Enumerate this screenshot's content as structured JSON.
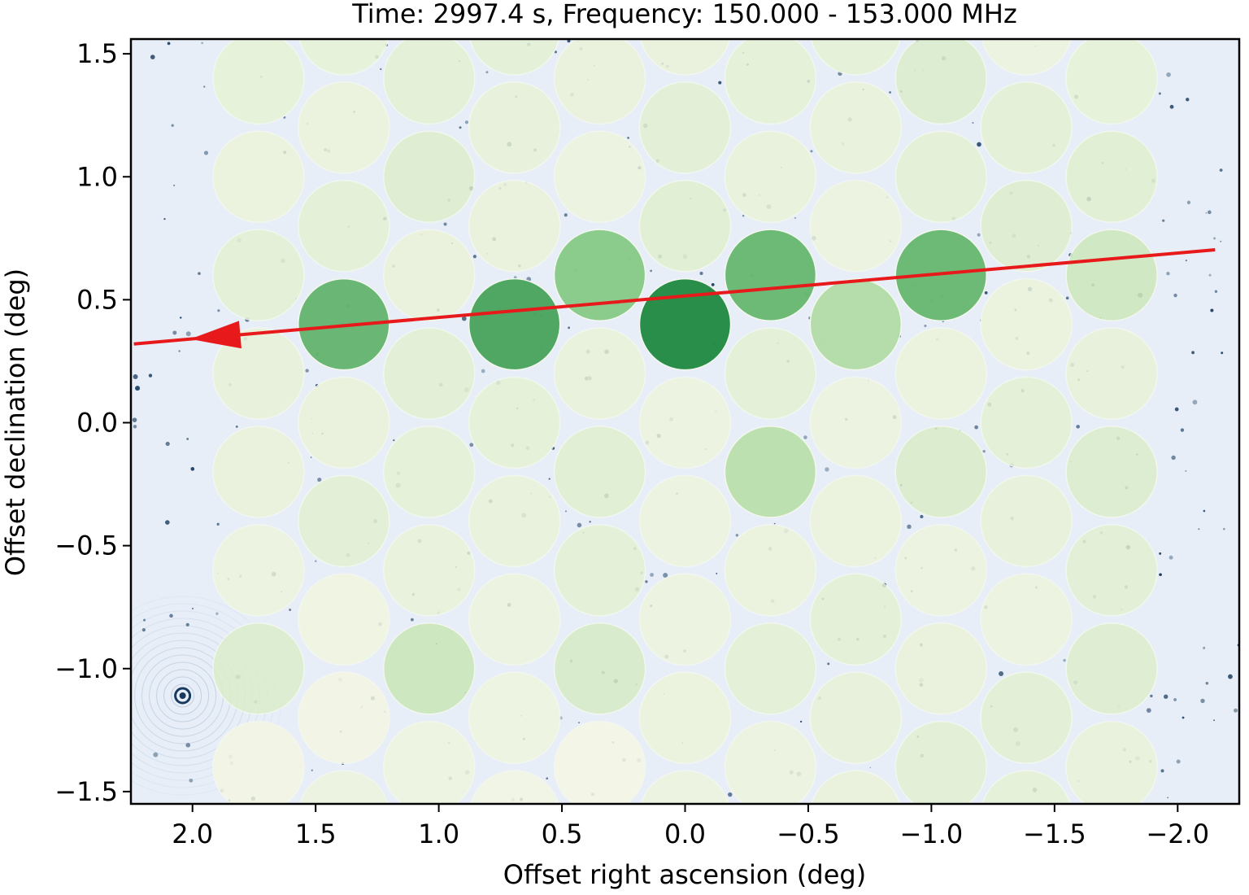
{
  "chart_data": {
    "type": "scatter",
    "title": "Time: 2997.4 s, Frequency: 150.000 - 153.000 MHz",
    "xlabel": "Offset right ascension (deg)",
    "ylabel": "Offset declination (deg)",
    "xlim": [
      2.25,
      -2.25
    ],
    "ylim": [
      -1.55,
      1.56
    ],
    "xticks": [
      2.0,
      1.5,
      1.0,
      0.5,
      0.0,
      -0.5,
      -1.0,
      -1.5,
      -2.0
    ],
    "xtick_labels": [
      "2.0",
      "1.5",
      "1.0",
      "0.5",
      "0.0",
      "−0.5",
      "−1.0",
      "−1.5",
      "−2.0"
    ],
    "yticks": [
      1.5,
      1.0,
      0.5,
      0.0,
      -0.5,
      -1.0,
      -1.5
    ],
    "ytick_labels": [
      "1.5",
      "1.0",
      "0.5",
      "0.0",
      "−0.5",
      "−1.0",
      "−1.5"
    ],
    "beam_grid": {
      "ra_spacing": 0.3464,
      "dec_spacing": 0.4,
      "odd_column_dec_offset": 0.2,
      "columns": [
        -5,
        5
      ],
      "beam_radius_deg": 0.185,
      "default_intensity": 0.08
    },
    "beam_intensity": [
      {
        "ra": 0.0,
        "dec": 0.4,
        "v": 1.0
      },
      {
        "ra": 0.693,
        "dec": 0.4,
        "v": 0.82
      },
      {
        "ra": 1.386,
        "dec": 0.4,
        "v": 0.7
      },
      {
        "ra": 0.346,
        "dec": 0.6,
        "v": 0.55
      },
      {
        "ra": -0.346,
        "dec": 0.6,
        "v": 0.68
      },
      {
        "ra": -1.039,
        "dec": 0.6,
        "v": 0.68
      },
      {
        "ra": -0.693,
        "dec": 0.4,
        "v": 0.38
      },
      {
        "ra": -1.732,
        "dec": 0.6,
        "v": 0.28
      },
      {
        "ra": -0.346,
        "dec": -0.2,
        "v": 0.35
      },
      {
        "ra": 1.039,
        "dec": -1.0,
        "v": 0.3
      },
      {
        "ra": 0.346,
        "dec": -1.0,
        "v": 0.2
      },
      {
        "ra": -1.039,
        "dec": -0.2,
        "v": 0.18
      },
      {
        "ra": -1.732,
        "dec": -0.2,
        "v": 0.16
      },
      {
        "ra": 0.346,
        "dec": -0.2,
        "v": 0.12
      },
      {
        "ra": 0.0,
        "dec": 0.8,
        "v": 0.12
      },
      {
        "ra": 1.039,
        "dec": 1.0,
        "v": 0.14
      },
      {
        "ra": -1.039,
        "dec": 1.4,
        "v": 0.16
      },
      {
        "ra": -1.386,
        "dec": 0.8,
        "v": 0.14
      },
      {
        "ra": -1.732,
        "dec": 1.0,
        "v": 0.12
      },
      {
        "ra": -1.732,
        "dec": -1.0,
        "v": 0.14
      },
      {
        "ra": 1.732,
        "dec": -1.0,
        "v": 0.16
      },
      {
        "ra": -0.346,
        "dec": -1.4,
        "v": 0.02
      },
      {
        "ra": 0.0,
        "dec": 0.0,
        "v": 0.02
      },
      {
        "ra": 0.0,
        "dec": -0.4,
        "v": 0.02
      },
      {
        "ra": 0.0,
        "dec": -0.8,
        "v": 0.03
      },
      {
        "ra": 0.346,
        "dec": 1.0,
        "v": 0.03
      },
      {
        "ra": -0.693,
        "dec": 0.8,
        "v": 0.03
      },
      {
        "ra": -0.693,
        "dec": -0.0,
        "v": 0.03
      },
      {
        "ra": 1.732,
        "dec": -0.6,
        "v": 0.02
      },
      {
        "ra": 1.386,
        "dec": -1.4,
        "v": 0.03
      },
      {
        "ra": -1.386,
        "dec": -0.8,
        "v": 0.03
      },
      {
        "ra": -1.039,
        "dec": -0.6,
        "v": 0.03
      }
    ],
    "track": {
      "start": [
        -2.152,
        0.703
      ],
      "end": [
        2.238,
        0.32
      ],
      "arrow_tip": [
        2.01,
        0.34
      ],
      "color": "#e8191b"
    },
    "grid": false
  }
}
